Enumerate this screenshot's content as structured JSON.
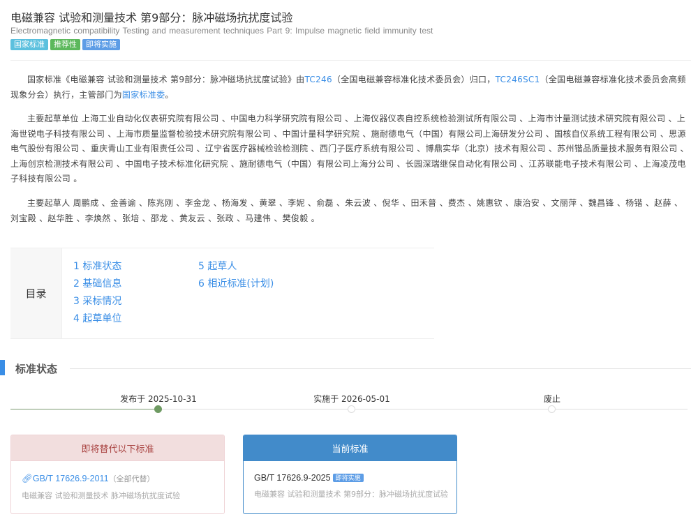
{
  "header": {
    "title": "电磁兼容 试验和测量技术 第9部分：脉冲磁场抗扰度试验",
    "subtitle": "Electromagnetic compatibility    Testing and measurement techniques    Part 9: Impulse magnetic field immunity test",
    "badges": [
      {
        "label": "国家标准",
        "color": "#5bc0de"
      },
      {
        "label": "推荐性",
        "color": "#5cb85c"
      },
      {
        "label": "即将实施",
        "color": "#5d9de6"
      }
    ]
  },
  "intro": {
    "p1": "国家标准《电磁兼容 试验和测量技术 第9部分：脉冲磁场抗扰度试验》由",
    "tc1": "TC246",
    "p2": "（全国电磁兼容标准化技术委员会）归口，",
    "tc2": "TC246SC1",
    "p3": "（全国电磁兼容标准化技术委员会高频现象分会）执行，主管部门为",
    "dept": "国家标准委",
    "p4": "。"
  },
  "units": "主要起草单位 上海工业自动化仪表研究院有限公司 、中国电力科学研究院有限公司 、上海仪器仪表自控系统检验测试所有限公司 、上海市计量测试技术研究院有限公司 、上海世锐电子科技有限公司 、上海市质量监督检验技术研究院有限公司 、中国计量科学研究院 、施耐德电气（中国）有限公司上海研发分公司 、国核自仪系统工程有限公司 、思源电气股份有限公司 、重庆青山工业有限责任公司 、辽宁省医疗器械检验检测院 、西门子医疗系统有限公司 、博鼎实华（北京）技术有限公司 、苏州锴品质量技术服务有限公司 、上海创京检测技术有限公司 、中国电子技术标准化研究院 、施耐德电气（中国）有限公司上海分公司 、长园深瑞继保自动化有限公司 、江苏联能电子技术有限公司 、上海凌茂电子科技有限公司 。",
  "people": "主要起草人 周鹏成 、金善谕 、陈兆刚 、李金龙 、杨海发 、黄翠 、李妮 、俞磊 、朱云波 、倪华 、田禾普 、费杰 、姚惠钦 、康治安 、文丽萍 、魏昌锋 、杨锴 、赵薛 、刘宝殿 、赵华胜 、李焕然 、张培 、邵龙 、黄友云 、张政 、马建伟 、樊俊毅 。",
  "toc": {
    "label": "目录",
    "items": [
      "1 标准状态",
      "2 基础信息",
      "3 采标情况",
      "4 起草单位",
      "5 起草人",
      "6 相近标准(计划)"
    ]
  },
  "status": {
    "title": "标准状态",
    "timeline": [
      {
        "label": "发布于 2025-10-31",
        "active": true
      },
      {
        "label": "实施于 2026-05-01",
        "active": false
      },
      {
        "label": "废止",
        "active": false
      }
    ]
  },
  "replace_card": {
    "header": "即将替代以下标准",
    "code": "GB/T 17626.9-2011",
    "note": "（全部代替）",
    "desc": "电磁兼容 试验和测量技术 脉冲磁场抗扰度试验"
  },
  "current_card": {
    "header": "当前标准",
    "code": "GB/T 17626.9-2025",
    "badge": "即将实施",
    "desc": "电磁兼容 试验和测量技术 第9部分：脉冲磁场抗扰度试验"
  }
}
